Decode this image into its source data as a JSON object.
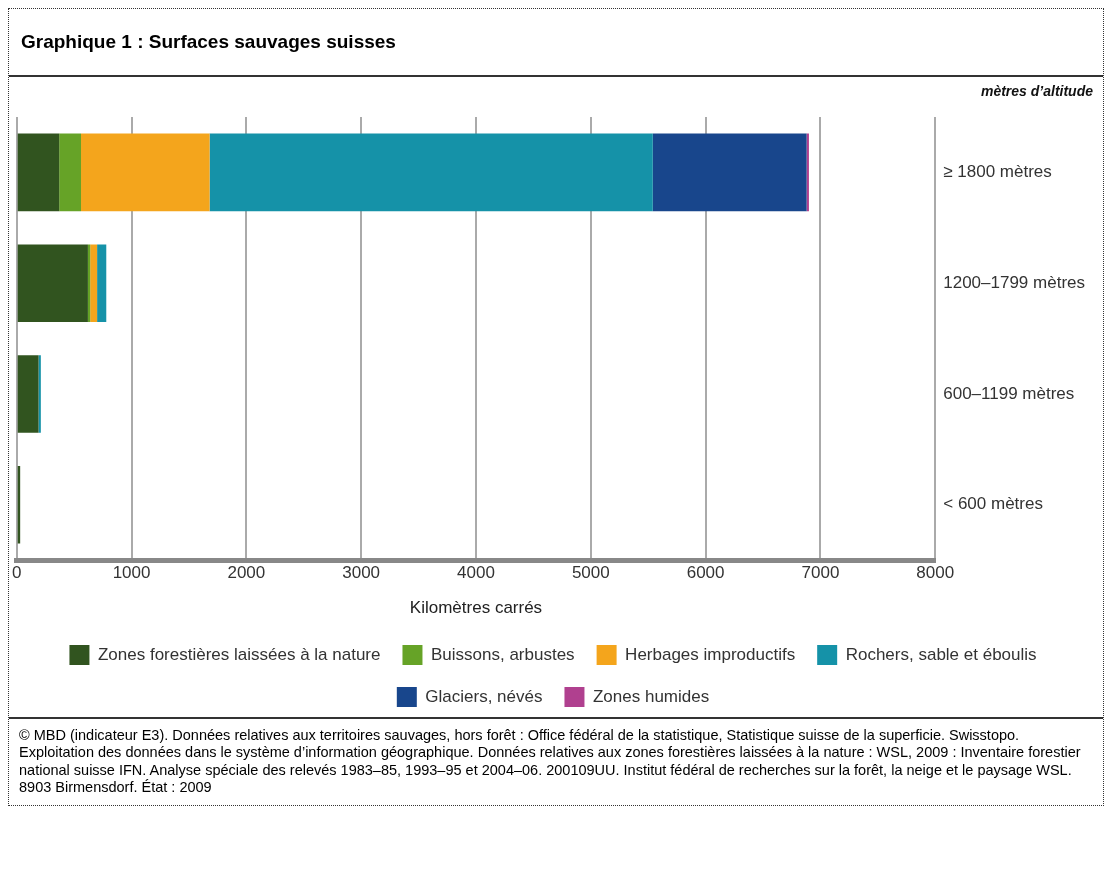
{
  "chart_data": {
    "type": "bar",
    "orientation": "horizontal",
    "stacked": true,
    "title": "Graphique 1 : Surfaces sauvages suisses",
    "ylabel": "mètres d’altitude",
    "xlabel": "Kilomètres carrés",
    "categories": [
      "≥ 1800 mètres",
      "1200–1799 mètres",
      "600–1199 mètres",
      "< 600 mètres"
    ],
    "series": [
      {
        "name": "Zones forestières laissées à la nature",
        "color": "#31541f",
        "values": [
          370,
          620,
          190,
          30
        ]
      },
      {
        "name": "Buissons, arbustes",
        "color": "#66a327",
        "values": [
          190,
          20,
          null,
          null
        ]
      },
      {
        "name": "Herbages improductifs",
        "color": "#f4a51c",
        "values": [
          1120,
          60,
          null,
          null
        ]
      },
      {
        "name": "Rochers, sable et éboulis",
        "color": "#1592a8",
        "values": [
          3860,
          80,
          20,
          null
        ]
      },
      {
        "name": "Glaciers, névés",
        "color": "#18468c",
        "values": [
          1340,
          null,
          null,
          null
        ]
      },
      {
        "name": "Zones humides",
        "color": "#b0408f",
        "values": [
          20,
          null,
          null,
          null
        ]
      }
    ],
    "xlim": [
      0,
      8000
    ],
    "xticks": [
      0,
      1000,
      2000,
      3000,
      4000,
      5000,
      6000,
      7000,
      8000
    ],
    "grid": "x",
    "legend": "bottom",
    "annotations": [
      "© MBD (indicateur E3). Données relatives aux territoires sauvages, hors forêt : Office fédéral de la statistique, Statistique suisse de la superficie. Swisstopo. Exploitation des données dans le système d’information géographique. Données relatives aux zones forestières laissées à la nature : WSL, 2009 : Inventaire forestier national suisse IFN. Analyse spéciale des relevés 1983–85, 1993–95 et 2004–06. 200109UU. Institut fédéral de recherches sur la forêt, la neige et le paysage WSL. 8903 Birmensdorf. État : 2009"
    ]
  }
}
